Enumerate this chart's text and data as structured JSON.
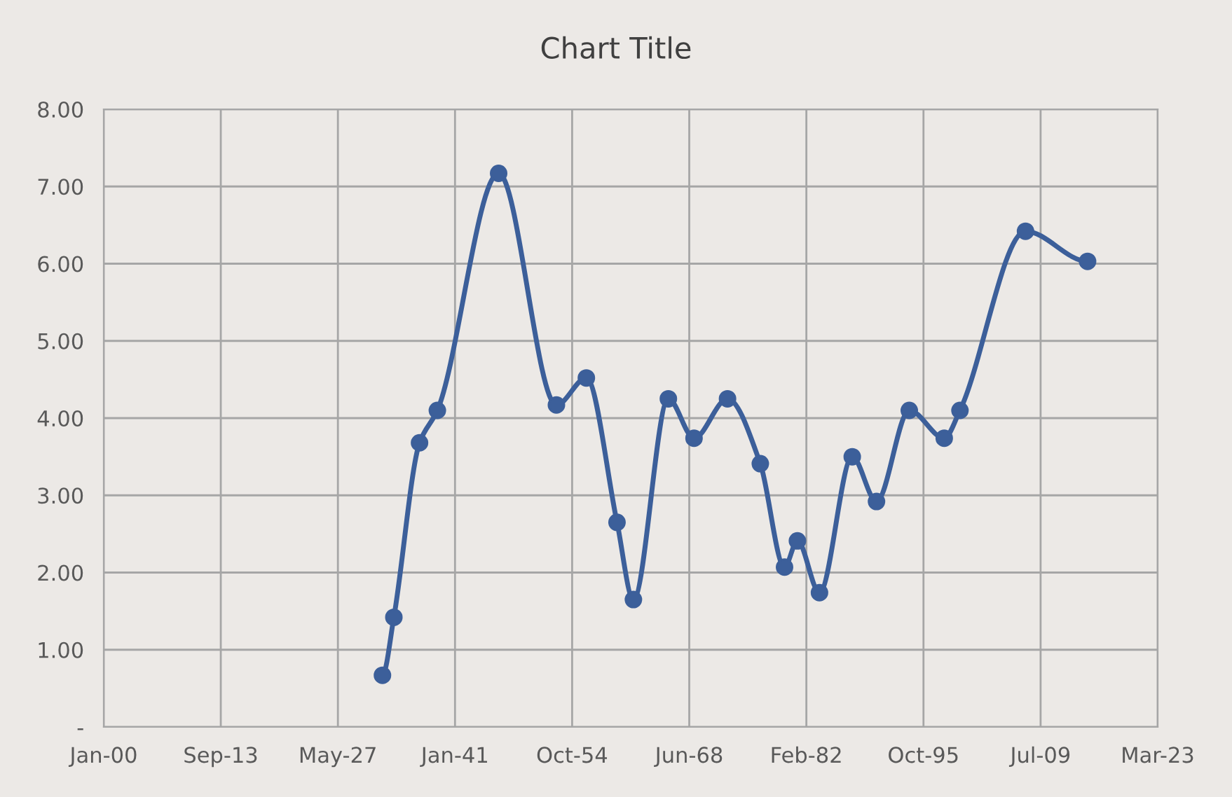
{
  "chart_data": {
    "type": "line",
    "title": "Chart Title",
    "x": [
      "1932-08",
      "1933-12",
      "1936-12",
      "1939-01",
      "1946-03",
      "1952-12",
      "1956-06",
      "1960-01",
      "1961-12",
      "1966-01",
      "1969-01",
      "1972-12",
      "1976-10",
      "1979-08",
      "1981-02",
      "1983-09",
      "1987-07",
      "1990-05",
      "1994-03",
      "1998-04",
      "2000-02",
      "2007-10",
      "2015-01"
    ],
    "series": [
      {
        "color": "#3c5f9a",
        "values": [
          0.67,
          1.42,
          3.68,
          4.1,
          7.17,
          4.17,
          4.52,
          2.65,
          1.65,
          4.25,
          3.74,
          4.25,
          3.41,
          2.07,
          2.41,
          1.74,
          3.5,
          2.92,
          4.1,
          3.74,
          4.1,
          6.42,
          6.03
        ]
      }
    ],
    "xlim": [
      "1900-01-01",
      "2023-03-15"
    ],
    "xticks": [
      {
        "value": "1900-01-01",
        "label": "Jan-00"
      },
      {
        "value": "1913-09-08",
        "label": "Sep-13"
      },
      {
        "value": "1927-05-18",
        "label": "May-27"
      },
      {
        "value": "1941-01-24",
        "label": "Jan-41"
      },
      {
        "value": "1954-10-03",
        "label": "Oct-54"
      },
      {
        "value": "1968-06-11",
        "label": "Jun-68"
      },
      {
        "value": "1982-02-18",
        "label": "Feb-82"
      },
      {
        "value": "1995-10-28",
        "label": "Oct-95"
      },
      {
        "value": "2009-07-06",
        "label": "Jul-09"
      },
      {
        "value": "2023-03-15",
        "label": "Mar-23"
      }
    ],
    "ylim": [
      0,
      8
    ],
    "yticks": [
      {
        "value": 0,
        "label": "-"
      },
      {
        "value": 1,
        "label": "1.00"
      },
      {
        "value": 2,
        "label": "2.00"
      },
      {
        "value": 3,
        "label": "3.00"
      },
      {
        "value": 4,
        "label": "4.00"
      },
      {
        "value": 5,
        "label": "5.00"
      },
      {
        "value": 6,
        "label": "6.00"
      },
      {
        "value": 7,
        "label": "7.00"
      },
      {
        "value": 8,
        "label": "8.00"
      }
    ],
    "grid": true,
    "marker": "circle",
    "line_style": "solid",
    "legend": false
  }
}
